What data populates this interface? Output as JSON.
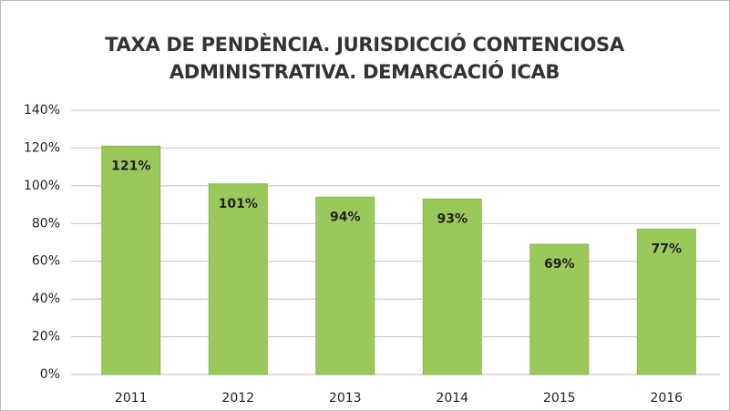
{
  "chart_data": {
    "type": "bar",
    "title": "TAXA DE PENDÈNCIA. JURISDICCIÓ CONTENCIOSA ADMINISTRATIVA. DEMARCACIÓ ICAB",
    "categories": [
      "2011",
      "2012",
      "2013",
      "2014",
      "2015",
      "2016"
    ],
    "values": [
      121,
      101,
      94,
      93,
      69,
      77
    ],
    "value_labels": [
      "121%",
      "101%",
      "94%",
      "93%",
      "69%",
      "77%"
    ],
    "color": "#9bc85a",
    "ylim": [
      0,
      140
    ],
    "yticks": [
      {
        "value": 0,
        "label": "0%"
      },
      {
        "value": 20,
        "label": "20%"
      },
      {
        "value": 40,
        "label": "40%"
      },
      {
        "value": 60,
        "label": "60%"
      },
      {
        "value": 80,
        "label": "80%"
      },
      {
        "value": 100,
        "label": "100%"
      },
      {
        "value": 120,
        "label": "120%"
      },
      {
        "value": 140,
        "label": "140%"
      }
    ],
    "grid": true
  }
}
